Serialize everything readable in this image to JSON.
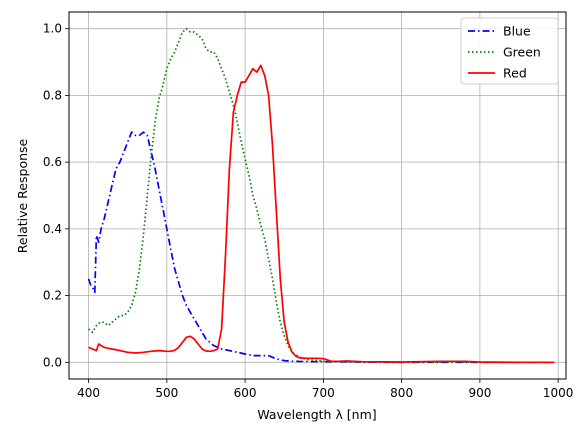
{
  "chart_data": {
    "type": "line",
    "title": "",
    "xlabel": "Wavelength λ [nm]",
    "ylabel": "Relative Response",
    "xlim": [
      375,
      1010
    ],
    "ylim": [
      -0.05,
      1.05
    ],
    "xticks": [
      400,
      500,
      600,
      700,
      800,
      900,
      1000
    ],
    "yticks": [
      0.0,
      0.2,
      0.4,
      0.6,
      0.8,
      1.0
    ],
    "xtick_labels": [
      "400",
      "500",
      "600",
      "700",
      "800",
      "900",
      "1000"
    ],
    "ytick_labels": [
      "0.0",
      "0.2",
      "0.4",
      "0.6",
      "0.8",
      "1.0"
    ],
    "grid": true,
    "legend_position": "top-right",
    "series": [
      {
        "name": "Blue",
        "color": "#0000ff",
        "style": "dashdot",
        "x": [
          400,
          403,
          406,
          408,
          410,
          413,
          416,
          420,
          425,
          430,
          435,
          440,
          445,
          450,
          455,
          460,
          465,
          470,
          475,
          480,
          485,
          490,
          495,
          500,
          505,
          510,
          515,
          520,
          525,
          530,
          540,
          550,
          560,
          570,
          580,
          590,
          600,
          610,
          620,
          630,
          640,
          650,
          660,
          680,
          700,
          750,
          800,
          850,
          900,
          950,
          995
        ],
        "y": [
          0.25,
          0.23,
          0.22,
          0.21,
          0.38,
          0.36,
          0.4,
          0.43,
          0.48,
          0.53,
          0.58,
          0.6,
          0.63,
          0.66,
          0.69,
          0.68,
          0.68,
          0.69,
          0.68,
          0.63,
          0.58,
          0.52,
          0.46,
          0.4,
          0.34,
          0.28,
          0.24,
          0.2,
          0.17,
          0.15,
          0.11,
          0.07,
          0.05,
          0.04,
          0.035,
          0.03,
          0.025,
          0.02,
          0.02,
          0.02,
          0.01,
          0.005,
          0.003,
          0.002,
          0.002,
          0.001,
          0.0,
          0.0,
          0.0,
          0.0,
          0.0
        ]
      },
      {
        "name": "Green",
        "color": "#008000",
        "style": "dotted",
        "x": [
          400,
          405,
          410,
          415,
          420,
          425,
          430,
          435,
          440,
          445,
          450,
          455,
          460,
          465,
          470,
          475,
          480,
          485,
          490,
          495,
          500,
          505,
          510,
          515,
          520,
          525,
          530,
          535,
          540,
          545,
          550,
          555,
          560,
          565,
          570,
          575,
          580,
          585,
          590,
          595,
          600,
          605,
          610,
          615,
          620,
          625,
          630,
          635,
          640,
          645,
          650,
          655,
          660,
          670,
          680,
          700,
          750,
          800,
          850,
          900,
          950,
          995
        ],
        "y": [
          0.1,
          0.09,
          0.11,
          0.12,
          0.12,
          0.11,
          0.12,
          0.13,
          0.14,
          0.14,
          0.15,
          0.17,
          0.21,
          0.28,
          0.38,
          0.5,
          0.62,
          0.72,
          0.79,
          0.83,
          0.88,
          0.91,
          0.93,
          0.96,
          0.99,
          1.0,
          0.99,
          0.99,
          0.98,
          0.97,
          0.94,
          0.93,
          0.93,
          0.91,
          0.88,
          0.85,
          0.81,
          0.77,
          0.72,
          0.66,
          0.61,
          0.56,
          0.5,
          0.46,
          0.41,
          0.37,
          0.31,
          0.25,
          0.18,
          0.12,
          0.08,
          0.05,
          0.03,
          0.015,
          0.008,
          0.003,
          0.001,
          0.0,
          0.0,
          0.0,
          0.0,
          0.0
        ]
      },
      {
        "name": "Red",
        "color": "#ff0000",
        "style": "solid",
        "x": [
          400,
          405,
          410,
          413,
          416,
          420,
          425,
          430,
          440,
          450,
          460,
          470,
          480,
          490,
          500,
          505,
          510,
          515,
          520,
          525,
          530,
          535,
          540,
          545,
          550,
          555,
          560,
          565,
          570,
          575,
          580,
          585,
          590,
          595,
          600,
          605,
          610,
          615,
          620,
          625,
          630,
          635,
          640,
          645,
          650,
          655,
          660,
          665,
          670,
          680,
          690,
          700,
          710,
          720,
          730,
          740,
          750,
          800,
          850,
          880,
          900,
          950,
          995
        ],
        "y": [
          0.045,
          0.04,
          0.035,
          0.055,
          0.05,
          0.045,
          0.042,
          0.04,
          0.035,
          0.03,
          0.028,
          0.03,
          0.033,
          0.035,
          0.033,
          0.033,
          0.036,
          0.045,
          0.06,
          0.075,
          0.078,
          0.07,
          0.055,
          0.04,
          0.034,
          0.033,
          0.035,
          0.04,
          0.1,
          0.32,
          0.58,
          0.75,
          0.8,
          0.84,
          0.84,
          0.86,
          0.88,
          0.87,
          0.89,
          0.86,
          0.8,
          0.65,
          0.45,
          0.25,
          0.12,
          0.06,
          0.03,
          0.018,
          0.013,
          0.012,
          0.012,
          0.011,
          0.003,
          0.003,
          0.004,
          0.003,
          0.002,
          0.001,
          0.003,
          0.003,
          0.001,
          0.0,
          0.0
        ]
      }
    ]
  }
}
